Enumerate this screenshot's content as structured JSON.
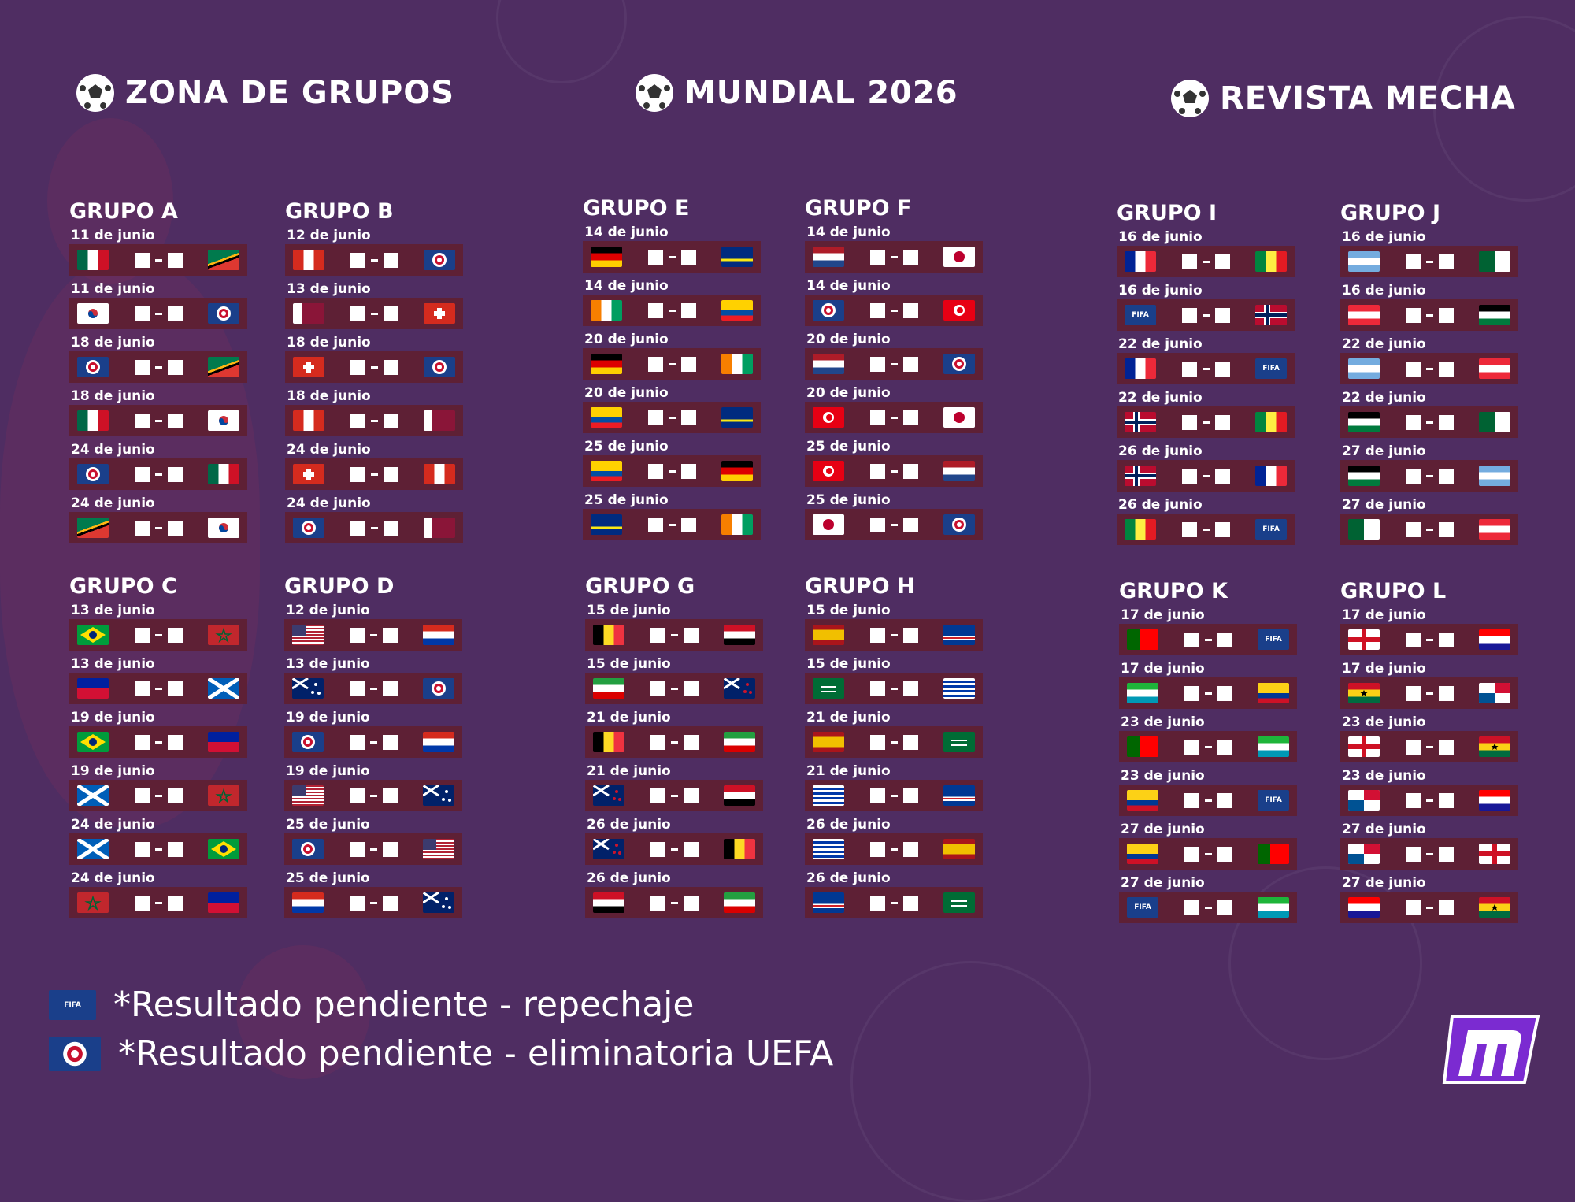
{
  "titles": [
    "ZONA DE GRUPOS",
    "MUNDIAL 2026",
    "REVISTA MECHA"
  ],
  "colors": {
    "background": "#4f2d62",
    "match_bar": "#5e2035",
    "brand": "#7b2bd1"
  },
  "legend": [
    {
      "badge": "fifa",
      "text": "*Resultado pendiente - repechaje"
    },
    {
      "badge": "uefa",
      "text": "*Resultado pendiente - eliminatoria UEFA"
    }
  ],
  "flag_labels": {
    "fifa": "FIFA"
  },
  "groups": [
    {
      "name": "GRUPO A",
      "matches": [
        {
          "date": "11 de junio",
          "home": "mx",
          "away": "za"
        },
        {
          "date": "11 de junio",
          "home": "kr",
          "away": "uefa"
        },
        {
          "date": "18 de junio",
          "home": "uefa",
          "away": "za"
        },
        {
          "date": "18 de junio",
          "home": "mx",
          "away": "kr"
        },
        {
          "date": "24 de junio",
          "home": "uefa",
          "away": "mx"
        },
        {
          "date": "24 de junio",
          "home": "za",
          "away": "kr"
        }
      ]
    },
    {
      "name": "GRUPO B",
      "matches": [
        {
          "date": "12 de junio",
          "home": "ca",
          "away": "uefa"
        },
        {
          "date": "13 de junio",
          "home": "qa",
          "away": "ch"
        },
        {
          "date": "18 de junio",
          "home": "ch",
          "away": "uefa"
        },
        {
          "date": "18 de junio",
          "home": "ca",
          "away": "qa"
        },
        {
          "date": "24 de junio",
          "home": "ch",
          "away": "ca"
        },
        {
          "date": "24 de junio",
          "home": "uefa",
          "away": "qa"
        }
      ]
    },
    {
      "name": "GRUPO C",
      "matches": [
        {
          "date": "13 de junio",
          "home": "br",
          "away": "ma"
        },
        {
          "date": "13 de junio",
          "home": "ht",
          "away": "sco"
        },
        {
          "date": "19 de junio",
          "home": "br",
          "away": "ht"
        },
        {
          "date": "19 de junio",
          "home": "sco",
          "away": "ma"
        },
        {
          "date": "24 de junio",
          "home": "sco",
          "away": "br"
        },
        {
          "date": "24 de junio",
          "home": "ma",
          "away": "ht"
        }
      ]
    },
    {
      "name": "GRUPO D",
      "matches": [
        {
          "date": "12 de junio",
          "home": "us",
          "away": "py"
        },
        {
          "date": "13 de junio",
          "home": "au",
          "away": "uefa"
        },
        {
          "date": "19 de junio",
          "home": "uefa",
          "away": "py"
        },
        {
          "date": "19 de junio",
          "home": "us",
          "away": "au"
        },
        {
          "date": "25 de junio",
          "home": "uefa",
          "away": "us"
        },
        {
          "date": "25 de junio",
          "home": "py",
          "away": "au"
        }
      ]
    },
    {
      "name": "GRUPO E",
      "matches": [
        {
          "date": "14 de junio",
          "home": "de",
          "away": "cw"
        },
        {
          "date": "14 de junio",
          "home": "ci",
          "away": "ec"
        },
        {
          "date": "20 de junio",
          "home": "de",
          "away": "ci"
        },
        {
          "date": "20 de junio",
          "home": "ec",
          "away": "cw"
        },
        {
          "date": "25 de junio",
          "home": "ec",
          "away": "de"
        },
        {
          "date": "25 de junio",
          "home": "cw",
          "away": "ci"
        }
      ]
    },
    {
      "name": "GRUPO F",
      "matches": [
        {
          "date": "14 de junio",
          "home": "nl",
          "away": "jp"
        },
        {
          "date": "14 de junio",
          "home": "uefa",
          "away": "tn"
        },
        {
          "date": "20 de junio",
          "home": "nl",
          "away": "uefa"
        },
        {
          "date": "20 de junio",
          "home": "tn",
          "away": "jp"
        },
        {
          "date": "25 de junio",
          "home": "tn",
          "away": "nl"
        },
        {
          "date": "25 de junio",
          "home": "jp",
          "away": "uefa"
        }
      ]
    },
    {
      "name": "GRUPO G",
      "matches": [
        {
          "date": "15 de junio",
          "home": "be",
          "away": "eg"
        },
        {
          "date": "15 de junio",
          "home": "ir",
          "away": "nz"
        },
        {
          "date": "21 de junio",
          "home": "be",
          "away": "ir"
        },
        {
          "date": "21 de junio",
          "home": "nz",
          "away": "eg"
        },
        {
          "date": "26 de junio",
          "home": "nz",
          "away": "be"
        },
        {
          "date": "26 de junio",
          "home": "eg",
          "away": "ir"
        }
      ]
    },
    {
      "name": "GRUPO H",
      "matches": [
        {
          "date": "15 de junio",
          "home": "es",
          "away": "cv"
        },
        {
          "date": "15 de junio",
          "home": "sa",
          "away": "uy"
        },
        {
          "date": "21 de junio",
          "home": "es",
          "away": "sa"
        },
        {
          "date": "21 de junio",
          "home": "uy",
          "away": "cv"
        },
        {
          "date": "26 de junio",
          "home": "uy",
          "away": "es"
        },
        {
          "date": "26 de junio",
          "home": "cv",
          "away": "sa"
        }
      ]
    },
    {
      "name": "GRUPO I",
      "matches": [
        {
          "date": "16 de junio",
          "home": "fr",
          "away": "sn"
        },
        {
          "date": "16 de junio",
          "home": "fifa",
          "away": "no"
        },
        {
          "date": "22 de junio",
          "home": "fr",
          "away": "fifa"
        },
        {
          "date": "22 de junio",
          "home": "no",
          "away": "sn"
        },
        {
          "date": "26 de junio",
          "home": "no",
          "away": "fr"
        },
        {
          "date": "26 de junio",
          "home": "sn",
          "away": "fifa"
        }
      ]
    },
    {
      "name": "GRUPO J",
      "matches": [
        {
          "date": "16 de junio",
          "home": "ar",
          "away": "dz"
        },
        {
          "date": "16 de junio",
          "home": "at",
          "away": "jo"
        },
        {
          "date": "22 de junio",
          "home": "ar",
          "away": "at"
        },
        {
          "date": "22 de junio",
          "home": "jo",
          "away": "dz"
        },
        {
          "date": "27 de junio",
          "home": "jo",
          "away": "ar"
        },
        {
          "date": "27 de junio",
          "home": "dz",
          "away": "at"
        }
      ]
    },
    {
      "name": "GRUPO K",
      "matches": [
        {
          "date": "17 de junio",
          "home": "pt",
          "away": "fifa"
        },
        {
          "date": "17 de junio",
          "home": "uz",
          "away": "co"
        },
        {
          "date": "23 de junio",
          "home": "pt",
          "away": "uz"
        },
        {
          "date": "23 de junio",
          "home": "co",
          "away": "fifa"
        },
        {
          "date": "27 de junio",
          "home": "co",
          "away": "pt"
        },
        {
          "date": "27 de junio",
          "home": "fifa",
          "away": "uz"
        }
      ]
    },
    {
      "name": "GRUPO L",
      "matches": [
        {
          "date": "17 de junio",
          "home": "en",
          "away": "hr"
        },
        {
          "date": "17 de junio",
          "home": "gh",
          "away": "pa"
        },
        {
          "date": "23 de junio",
          "home": "en",
          "away": "gh"
        },
        {
          "date": "23 de junio",
          "home": "pa",
          "away": "hr"
        },
        {
          "date": "27 de junio",
          "home": "pa",
          "away": "en"
        },
        {
          "date": "27 de junio",
          "home": "hr",
          "away": "gh"
        }
      ]
    }
  ]
}
